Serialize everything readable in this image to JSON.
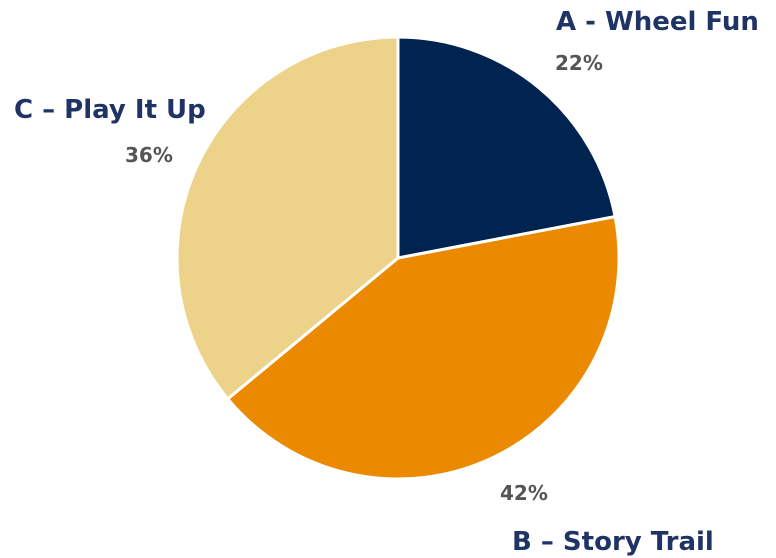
{
  "chart_data": {
    "type": "pie",
    "title": "",
    "start_angle_deg": 0,
    "direction": "clockwise",
    "slices": [
      {
        "label": "A - Wheel Fun",
        "value": 22,
        "value_label": "22%",
        "color": "#00234f"
      },
      {
        "label": "B – Story Trail",
        "value": 42,
        "value_label": "42%",
        "color": "#eb8a00"
      },
      {
        "label": "C – Play It Up",
        "value": 36,
        "value_label": "36%",
        "color": "#edd289"
      }
    ],
    "slice_border_color": "#ffffff",
    "legend": "none"
  }
}
